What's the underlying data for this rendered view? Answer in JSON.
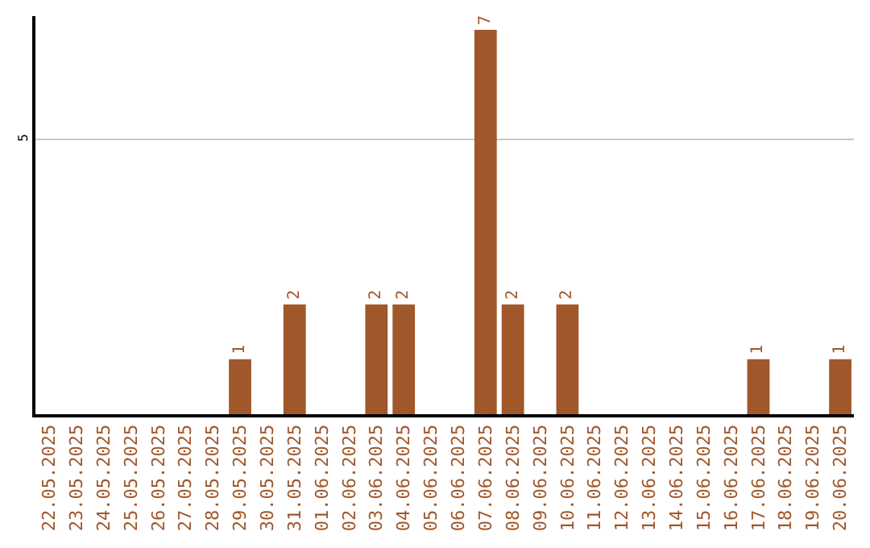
{
  "chart_data": {
    "type": "bar",
    "categories": [
      "22.05.2025",
      "23.05.2025",
      "24.05.2025",
      "25.05.2025",
      "26.05.2025",
      "27.05.2025",
      "28.05.2025",
      "29.05.2025",
      "30.05.2025",
      "31.05.2025",
      "01.06.2025",
      "02.06.2025",
      "03.06.2025",
      "04.06.2025",
      "05.06.2025",
      "06.06.2025",
      "07.06.2025",
      "08.06.2025",
      "09.06.2025",
      "10.06.2025",
      "11.06.2025",
      "12.06.2025",
      "13.06.2025",
      "14.06.2025",
      "15.06.2025",
      "16.06.2025",
      "17.06.2025",
      "18.06.2025",
      "19.06.2025",
      "20.06.2025"
    ],
    "values": [
      0,
      0,
      0,
      0,
      0,
      0,
      0,
      1,
      0,
      2,
      0,
      0,
      2,
      2,
      0,
      0,
      7,
      2,
      0,
      2,
      0,
      0,
      0,
      0,
      0,
      0,
      1,
      0,
      0,
      1
    ],
    "value_labels": [
      null,
      null,
      null,
      null,
      null,
      null,
      null,
      "1",
      null,
      "2",
      null,
      null,
      "2",
      "2",
      null,
      null,
      "7",
      "2",
      null,
      "2",
      null,
      null,
      null,
      null,
      null,
      null,
      "1",
      null,
      null,
      "1"
    ],
    "color": "#a0572a",
    "ylim": [
      0,
      7.25
    ],
    "yticks": [
      5
    ],
    "grid": "y",
    "legend": false
  }
}
